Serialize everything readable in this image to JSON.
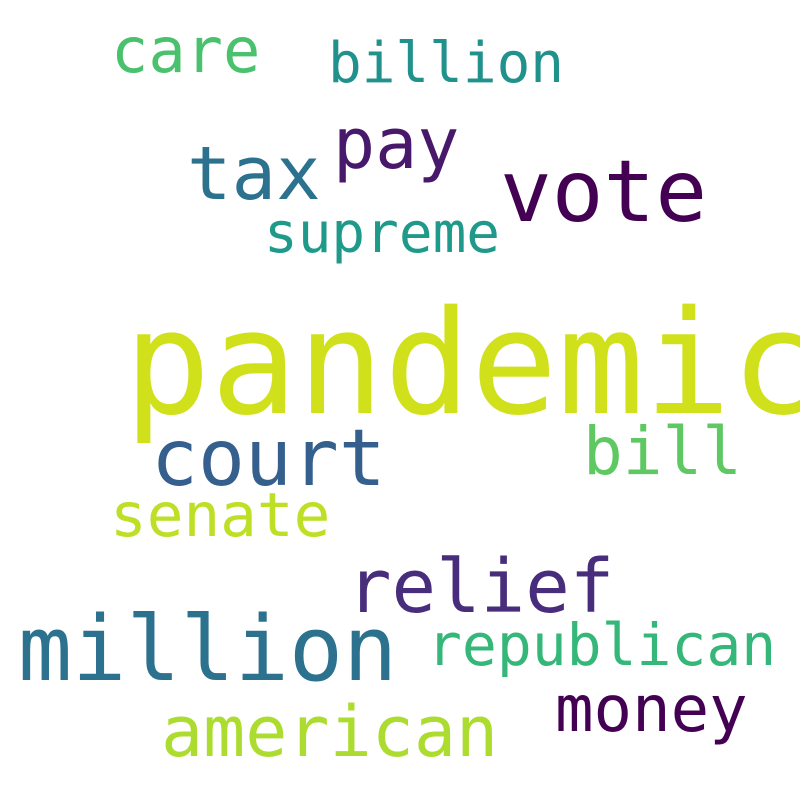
{
  "word_cloud": {
    "words": [
      {
        "id": "pandemic",
        "text": "pandemic",
        "color": "#d0e11c"
      },
      {
        "id": "vote",
        "text": "vote",
        "color": "#440154"
      },
      {
        "id": "million",
        "text": "million",
        "color": "#2c728e"
      },
      {
        "id": "court",
        "text": "court",
        "color": "#355f8d"
      },
      {
        "id": "relief",
        "text": "relief",
        "color": "#472d7b"
      },
      {
        "id": "tax",
        "text": "tax",
        "color": "#2c728e"
      },
      {
        "id": "american",
        "text": "american",
        "color": "#addc30"
      },
      {
        "id": "pay",
        "text": "pay",
        "color": "#48186a"
      },
      {
        "id": "bill",
        "text": "bill",
        "color": "#5ec962"
      },
      {
        "id": "money",
        "text": "money",
        "color": "#440154"
      },
      {
        "id": "care",
        "text": "care",
        "color": "#4ac16d"
      },
      {
        "id": "senate",
        "text": "senate",
        "color": "#bddf26"
      },
      {
        "id": "republican",
        "text": "republican",
        "color": "#35b779"
      },
      {
        "id": "billion",
        "text": "billion",
        "color": "#21918c"
      },
      {
        "id": "supreme",
        "text": "supreme",
        "color": "#1f9a8a"
      }
    ]
  }
}
